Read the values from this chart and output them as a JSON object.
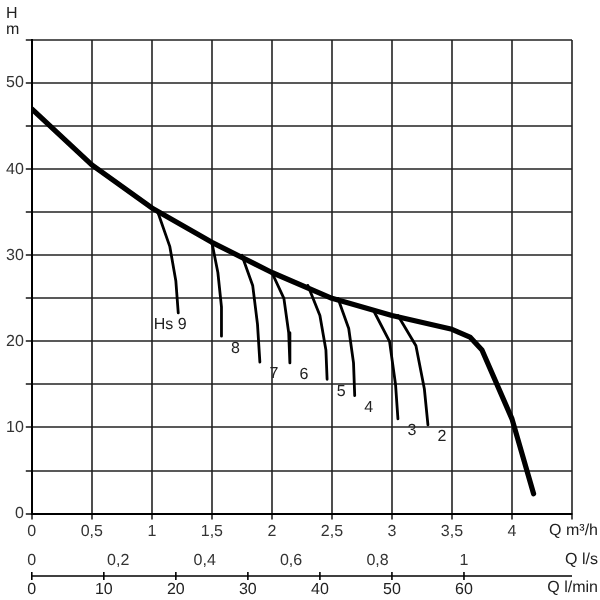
{
  "chart_data": {
    "type": "line",
    "xlabel": "Q m³/h",
    "x2label": "Q l/s",
    "ylabel": "H\nm",
    "annotations": [
      "Q l/min",
      "0",
      "10",
      "20",
      "30",
      "40",
      "50",
      "60"
    ],
    "xlim": [
      0,
      4.5
    ],
    "xticks": [
      0,
      {
        "value": 0.5,
        "label": "0,5"
      },
      1,
      {
        "value": 1.5,
        "label": "1,5"
      },
      2,
      {
        "value": 2.5,
        "label": "2,5"
      },
      3,
      {
        "value": 3.5,
        "label": "3,5"
      },
      4,
      {
        "value": 4.5,
        "label": null
      }
    ],
    "x2lim": [
      0,
      1.25
    ],
    "x2ticks": [
      0,
      {
        "value": 0.2,
        "label": "0,2"
      },
      {
        "value": 0.4,
        "label": "0,4"
      },
      {
        "value": 0.6,
        "label": "0,6"
      },
      {
        "value": 0.8,
        "label": "0,8"
      },
      1
    ],
    "ylim": [
      0,
      55
    ],
    "yticks": [
      0,
      {
        "value": 5,
        "label": null
      },
      10,
      {
        "value": 15,
        "label": null
      },
      20,
      {
        "value": 25,
        "label": null
      },
      30,
      {
        "value": 35,
        "label": null
      },
      40,
      {
        "value": 45,
        "label": null
      },
      50,
      {
        "value": 55,
        "label": null
      }
    ],
    "grid": true,
    "legend": false,
    "marker": "none",
    "line_style": "solid",
    "series": [
      {
        "color": "#000000",
        "x": [
          0,
          0.5,
          1,
          1.5,
          2,
          2.5,
          3,
          3.5,
          3.65,
          3.75,
          4,
          4.18
        ],
        "values": [
          47,
          40.5,
          35.5,
          31.5,
          28,
          25,
          23,
          21.4,
          20.5,
          19,
          11,
          2.3
        ]
      },
      {
        "name": "Hs 9",
        "color": "#000000",
        "x": [
          1.05,
          1.15,
          1.2,
          1.22
        ],
        "values": [
          35,
          31,
          27,
          23.3
        ]
      },
      {
        "name": "8",
        "color": "#000000",
        "x": [
          1.5,
          1.55,
          1.58,
          1.58
        ],
        "values": [
          31.5,
          28,
          24,
          20.6
        ]
      },
      {
        "name": "7",
        "color": "#000000",
        "x": [
          1.75,
          1.84,
          1.88,
          1.9
        ],
        "values": [
          30,
          26.5,
          22,
          17.6
        ]
      },
      {
        "name": "6",
        "color": "#000000",
        "x": [
          2,
          2.1,
          2.14,
          2.15
        ],
        "values": [
          28,
          25,
          21,
          17.5
        ]
      },
      {
        "name": "5",
        "color": "#000000",
        "x": [
          2.3,
          2.4,
          2.45,
          2.46
        ],
        "values": [
          26.5,
          23,
          19,
          15.6
        ]
      },
      {
        "name": "4",
        "color": "#000000",
        "x": [
          2.55,
          2.64,
          2.68,
          2.69
        ],
        "values": [
          25,
          21.5,
          17.5,
          13.7
        ]
      },
      {
        "name": "3",
        "color": "#000000",
        "x": [
          2.85,
          2.98,
          3.03,
          3.05
        ],
        "values": [
          23.5,
          20,
          15,
          11
        ]
      },
      {
        "name": "2",
        "color": "#000000",
        "x": [
          3.05,
          3.2,
          3.27,
          3.3
        ],
        "values": [
          23,
          19.5,
          14.5,
          10.3
        ]
      }
    ]
  }
}
